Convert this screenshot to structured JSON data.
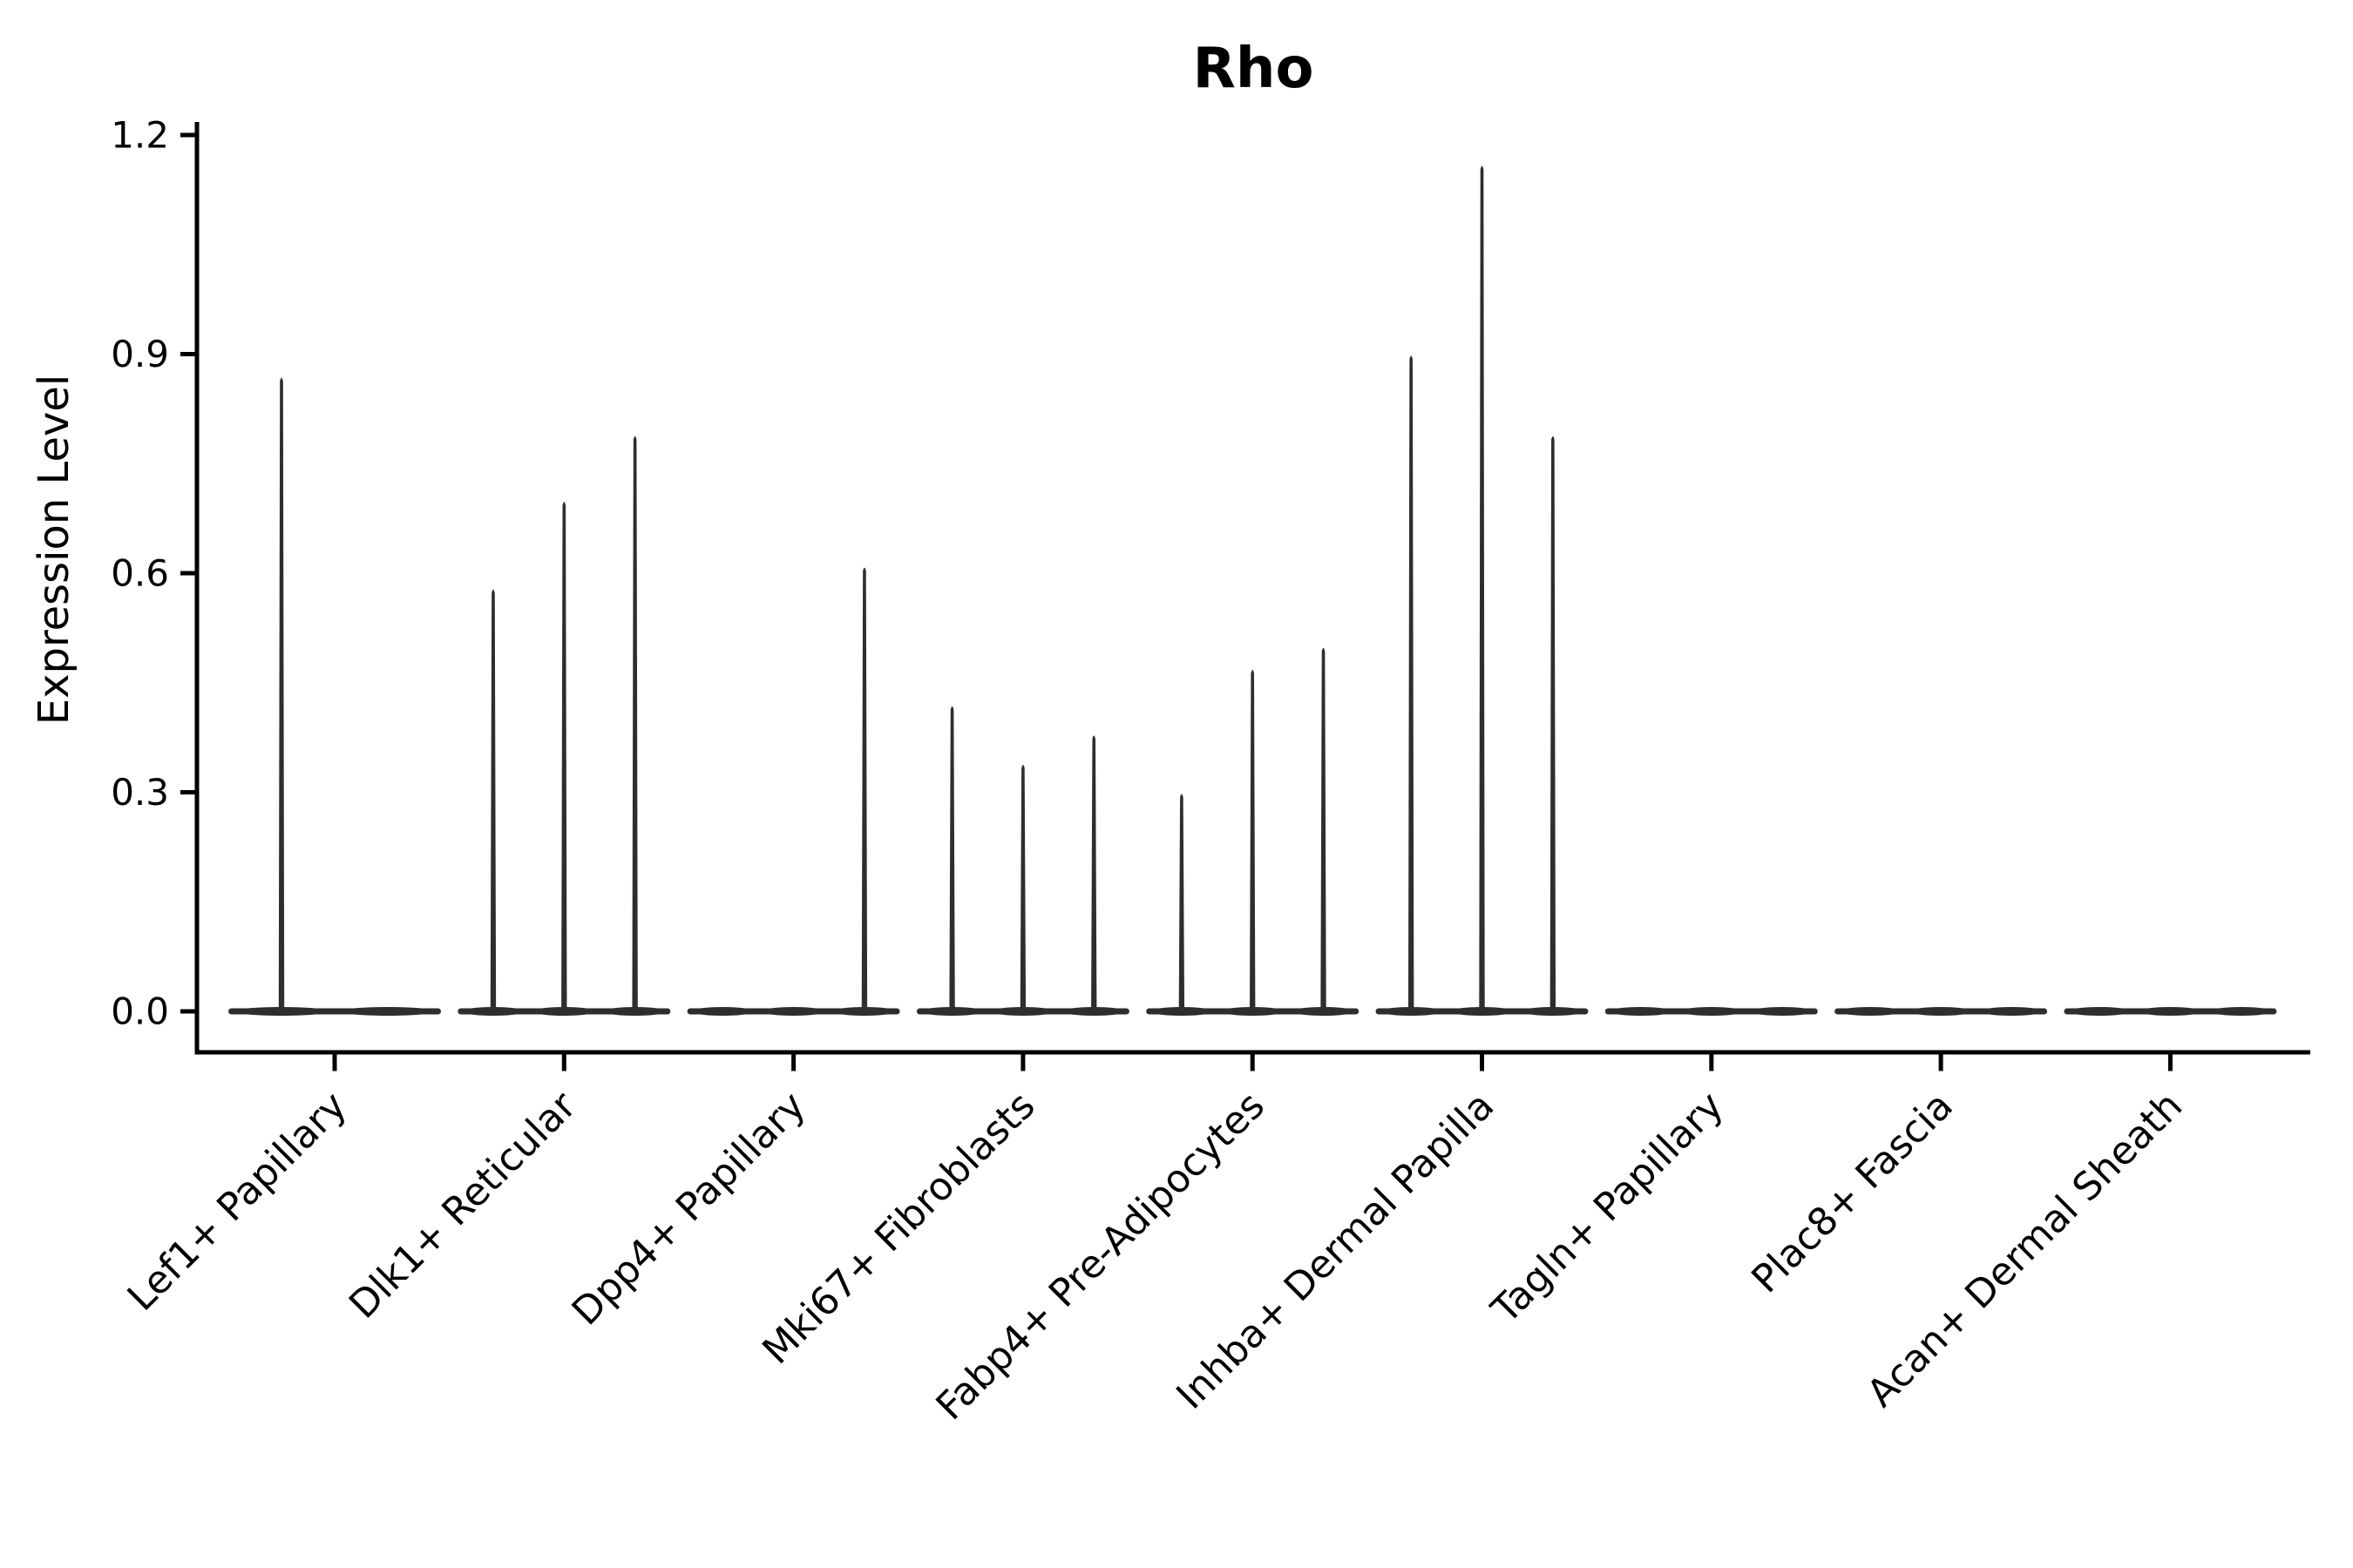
{
  "title": "Rho",
  "colors": {
    "background": "#ffffff",
    "violin_fill": "#2e2e2e",
    "axis_line": "#000000",
    "text": "#000000"
  },
  "chart_data": {
    "type": "violin",
    "title": "Rho",
    "xlabel": "",
    "ylabel": "Expression Level",
    "ylim": [
      0,
      1.2
    ],
    "yticks": [
      0.0,
      0.3,
      0.6,
      0.9,
      1.2
    ],
    "ytick_labels": [
      "0.0",
      "0.3",
      "0.6",
      "0.9",
      "1.2"
    ],
    "grid": false,
    "legend": null,
    "tick_label_rotation_deg": 45,
    "categories": [
      "Lef1+ Papillary",
      "Dlk1+ Reticular",
      "Dpp4+ Papillary",
      "Mki67+ Fibroblasts",
      "Fabp4+ Pre-Adipocytes",
      "Inhba+ Dermal Papilla",
      "Tagln+ Papillary",
      "Plac8+ Fascia",
      "Acan+ Dermal Sheath"
    ],
    "series": [
      {
        "category": "Lef1+ Papillary",
        "violin_max_expression": [
          0.87,
          0
        ]
      },
      {
        "category": "Dlk1+ Reticular",
        "violin_max_expression": [
          0.58,
          0.7,
          0.79
        ]
      },
      {
        "category": "Dpp4+ Papillary",
        "violin_max_expression": [
          0,
          0,
          0.61
        ]
      },
      {
        "category": "Mki67+ Fibroblasts",
        "violin_max_expression": [
          0.42,
          0.34,
          0.38
        ]
      },
      {
        "category": "Fabp4+ Pre-Adipocytes",
        "violin_max_expression": [
          0.3,
          0.47,
          0.5
        ]
      },
      {
        "category": "Inhba+ Dermal Papilla",
        "violin_max_expression": [
          0.9,
          1.16,
          0.79
        ]
      },
      {
        "category": "Tagln+ Papillary",
        "violin_max_expression": [
          0,
          0,
          0
        ]
      },
      {
        "category": "Plac8+ Fascia",
        "violin_max_expression": [
          0,
          0,
          0
        ]
      },
      {
        "category": "Acan+ Dermal Sheath",
        "violin_max_expression": [
          0,
          0,
          0
        ]
      }
    ]
  }
}
